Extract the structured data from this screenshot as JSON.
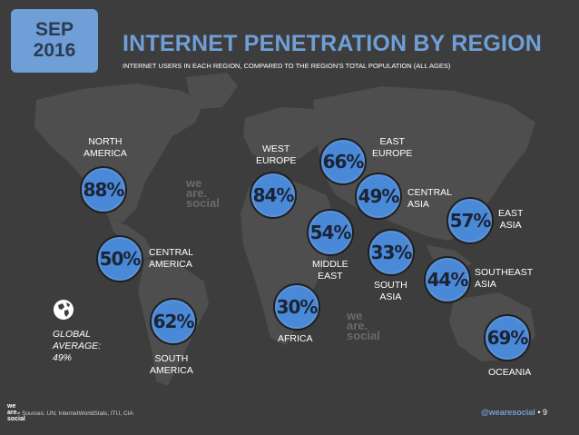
{
  "date": {
    "month": "SEP",
    "year": "2016"
  },
  "title": "INTERNET PENETRATION BY REGION",
  "subtitle": "INTERNET USERS IN EACH REGION, COMPARED TO THE REGION'S TOTAL POPULATION (ALL AGES)",
  "colors": {
    "accent": "#6f9fd6",
    "circle": "#4a88d8",
    "background": "#3d3d3d"
  },
  "regions": [
    {
      "id": "north-america",
      "value": "88%",
      "label": "NORTH\nAMERICA"
    },
    {
      "id": "central-america",
      "value": "50%",
      "label": "CENTRAL\nAMERICA"
    },
    {
      "id": "south-america",
      "value": "62%",
      "label": "SOUTH\nAMERICA"
    },
    {
      "id": "west-europe",
      "value": "84%",
      "label": "WEST\nEUROPE"
    },
    {
      "id": "east-europe",
      "value": "66%",
      "label": "EAST\nEUROPE"
    },
    {
      "id": "central-asia",
      "value": "49%",
      "label": "CENTRAL\nASIA"
    },
    {
      "id": "middle-east",
      "value": "54%",
      "label": "MIDDLE\nEAST"
    },
    {
      "id": "africa",
      "value": "30%",
      "label": "AFRICA"
    },
    {
      "id": "south-asia",
      "value": "33%",
      "label": "SOUTH\nASIA"
    },
    {
      "id": "east-asia",
      "value": "57%",
      "label": "EAST\nASIA"
    },
    {
      "id": "southeast-asia",
      "value": "44%",
      "label": "SOUTHEAST\nASIA"
    },
    {
      "id": "oceania",
      "value": "69%",
      "label": "OCEANIA"
    }
  ],
  "global_average": {
    "label": "GLOBAL\nAVERAGE:\n49%",
    "icon": "globe-icon"
  },
  "watermark": [
    "we",
    "are.",
    "social"
  ],
  "logo": [
    "we",
    "are.",
    "social"
  ],
  "source": "• Sources: UN; InternetWorldStats, ITU, CIA",
  "handle": "@wearesocial",
  "page": "• 9"
}
